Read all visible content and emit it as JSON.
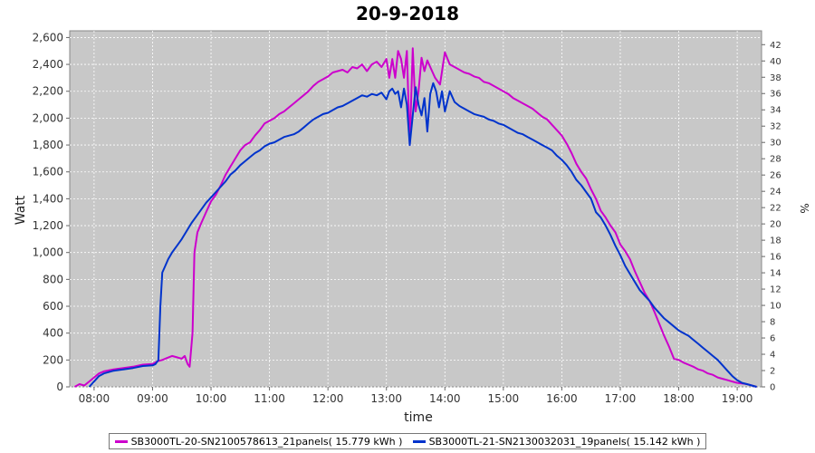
{
  "chart_data": {
    "type": "line",
    "title": "20-9-2018",
    "xlabel": "time",
    "ylabel": "Watt",
    "ylabel_right": "%",
    "xlim": [
      "07:35",
      "19:25"
    ],
    "ylim": [
      0,
      2650
    ],
    "ylim_right": [
      0,
      43.7
    ],
    "x_ticks": [
      "08:00",
      "09:00",
      "10:00",
      "11:00",
      "12:00",
      "13:00",
      "14:00",
      "15:00",
      "16:00",
      "17:00",
      "18:00",
      "19:00"
    ],
    "y_ticks": [
      "0",
      "200",
      "400",
      "600",
      "800",
      "1,000",
      "1,200",
      "1,400",
      "1,600",
      "1,800",
      "2,000",
      "2,200",
      "2,400",
      "2,600"
    ],
    "y_ticks_right": [
      "0",
      "2",
      "4",
      "6",
      "8",
      "10",
      "12",
      "14",
      "16",
      "18",
      "20",
      "22",
      "24",
      "26",
      "28",
      "30",
      "32",
      "34",
      "36",
      "38",
      "40",
      "42"
    ],
    "grid": true,
    "legend_position": "bottom",
    "series": [
      {
        "name": "SB3000TL-20-SN2100578613_21panels( 15.779 kWh )",
        "color": "#cc00cc",
        "points": [
          [
            "07:40",
            0
          ],
          [
            "07:45",
            20
          ],
          [
            "07:50",
            10
          ],
          [
            "07:55",
            40
          ],
          [
            "08:00",
            70
          ],
          [
            "08:05",
            100
          ],
          [
            "08:10",
            115
          ],
          [
            "08:20",
            130
          ],
          [
            "08:30",
            140
          ],
          [
            "08:40",
            150
          ],
          [
            "08:50",
            165
          ],
          [
            "09:00",
            170
          ],
          [
            "09:05",
            190
          ],
          [
            "09:10",
            200
          ],
          [
            "09:15",
            215
          ],
          [
            "09:20",
            230
          ],
          [
            "09:25",
            220
          ],
          [
            "09:30",
            210
          ],
          [
            "09:33",
            230
          ],
          [
            "09:36",
            170
          ],
          [
            "09:38",
            150
          ],
          [
            "09:41",
            400
          ],
          [
            "09:43",
            1000
          ],
          [
            "09:46",
            1150
          ],
          [
            "09:50",
            1220
          ],
          [
            "09:55",
            1300
          ],
          [
            "10:00",
            1380
          ],
          [
            "10:05",
            1430
          ],
          [
            "10:10",
            1500
          ],
          [
            "10:15",
            1580
          ],
          [
            "10:20",
            1640
          ],
          [
            "10:25",
            1700
          ],
          [
            "10:30",
            1760
          ],
          [
            "10:35",
            1800
          ],
          [
            "10:40",
            1820
          ],
          [
            "10:45",
            1870
          ],
          [
            "10:50",
            1910
          ],
          [
            "10:55",
            1960
          ],
          [
            "11:00",
            1980
          ],
          [
            "11:05",
            2000
          ],
          [
            "11:10",
            2030
          ],
          [
            "11:15",
            2050
          ],
          [
            "11:20",
            2080
          ],
          [
            "11:25",
            2110
          ],
          [
            "11:30",
            2140
          ],
          [
            "11:35",
            2170
          ],
          [
            "11:40",
            2200
          ],
          [
            "11:45",
            2240
          ],
          [
            "11:50",
            2270
          ],
          [
            "11:55",
            2290
          ],
          [
            "12:00",
            2310
          ],
          [
            "12:05",
            2340
          ],
          [
            "12:10",
            2350
          ],
          [
            "12:15",
            2360
          ],
          [
            "12:20",
            2340
          ],
          [
            "12:25",
            2380
          ],
          [
            "12:30",
            2370
          ],
          [
            "12:35",
            2400
          ],
          [
            "12:40",
            2350
          ],
          [
            "12:45",
            2400
          ],
          [
            "12:50",
            2420
          ],
          [
            "12:55",
            2380
          ],
          [
            "13:00",
            2440
          ],
          [
            "13:03",
            2300
          ],
          [
            "13:06",
            2440
          ],
          [
            "13:09",
            2300
          ],
          [
            "13:12",
            2500
          ],
          [
            "13:15",
            2440
          ],
          [
            "13:18",
            2300
          ],
          [
            "13:21",
            2500
          ],
          [
            "13:24",
            1800
          ],
          [
            "13:27",
            2520
          ],
          [
            "13:30",
            2050
          ],
          [
            "13:33",
            2200
          ],
          [
            "13:36",
            2450
          ],
          [
            "13:39",
            2350
          ],
          [
            "13:42",
            2430
          ],
          [
            "13:45",
            2380
          ],
          [
            "13:50",
            2300
          ],
          [
            "13:55",
            2250
          ],
          [
            "14:00",
            2490
          ],
          [
            "14:05",
            2400
          ],
          [
            "14:10",
            2380
          ],
          [
            "14:15",
            2360
          ],
          [
            "14:20",
            2340
          ],
          [
            "14:25",
            2330
          ],
          [
            "14:30",
            2310
          ],
          [
            "14:35",
            2300
          ],
          [
            "14:40",
            2270
          ],
          [
            "14:45",
            2260
          ],
          [
            "14:50",
            2240
          ],
          [
            "14:55",
            2220
          ],
          [
            "15:00",
            2200
          ],
          [
            "15:05",
            2180
          ],
          [
            "15:10",
            2150
          ],
          [
            "15:15",
            2130
          ],
          [
            "15:20",
            2110
          ],
          [
            "15:25",
            2090
          ],
          [
            "15:30",
            2070
          ],
          [
            "15:35",
            2040
          ],
          [
            "15:40",
            2010
          ],
          [
            "15:45",
            1990
          ],
          [
            "15:50",
            1950
          ],
          [
            "15:55",
            1910
          ],
          [
            "16:00",
            1870
          ],
          [
            "16:05",
            1810
          ],
          [
            "16:10",
            1740
          ],
          [
            "16:15",
            1660
          ],
          [
            "16:20",
            1600
          ],
          [
            "16:25",
            1550
          ],
          [
            "16:30",
            1470
          ],
          [
            "16:35",
            1400
          ],
          [
            "16:40",
            1310
          ],
          [
            "16:45",
            1260
          ],
          [
            "16:50",
            1200
          ],
          [
            "16:55",
            1150
          ],
          [
            "17:00",
            1060
          ],
          [
            "17:05",
            1010
          ],
          [
            "17:10",
            950
          ],
          [
            "17:15",
            860
          ],
          [
            "17:20",
            780
          ],
          [
            "17:25",
            700
          ],
          [
            "17:30",
            640
          ],
          [
            "17:35",
            560
          ],
          [
            "17:40",
            470
          ],
          [
            "17:45",
            380
          ],
          [
            "17:50",
            300
          ],
          [
            "17:55",
            210
          ],
          [
            "18:00",
            200
          ],
          [
            "18:05",
            180
          ],
          [
            "18:10",
            165
          ],
          [
            "18:15",
            150
          ],
          [
            "18:20",
            130
          ],
          [
            "18:25",
            120
          ],
          [
            "18:30",
            100
          ],
          [
            "18:35",
            90
          ],
          [
            "18:40",
            70
          ],
          [
            "18:45",
            60
          ],
          [
            "18:50",
            50
          ],
          [
            "18:55",
            40
          ],
          [
            "19:00",
            30
          ],
          [
            "19:05",
            25
          ],
          [
            "19:10",
            20
          ],
          [
            "19:15",
            10
          ],
          [
            "19:20",
            0
          ]
        ]
      },
      {
        "name": "SB3000TL-21-SN2130032031_19panels( 15.142 kWh )",
        "color": "#0033cc",
        "points": [
          [
            "07:55",
            0
          ],
          [
            "08:00",
            40
          ],
          [
            "08:05",
            80
          ],
          [
            "08:10",
            100
          ],
          [
            "08:15",
            110
          ],
          [
            "08:20",
            120
          ],
          [
            "08:30",
            130
          ],
          [
            "08:40",
            140
          ],
          [
            "08:50",
            155
          ],
          [
            "09:00",
            160
          ],
          [
            "09:03",
            170
          ],
          [
            "09:06",
            200
          ],
          [
            "09:08",
            600
          ],
          [
            "09:10",
            850
          ],
          [
            "09:13",
            900
          ],
          [
            "09:16",
            950
          ],
          [
            "09:20",
            1000
          ],
          [
            "09:25",
            1050
          ],
          [
            "09:30",
            1100
          ],
          [
            "09:35",
            1160
          ],
          [
            "09:40",
            1220
          ],
          [
            "09:45",
            1270
          ],
          [
            "09:50",
            1320
          ],
          [
            "09:55",
            1370
          ],
          [
            "10:00",
            1410
          ],
          [
            "10:05",
            1450
          ],
          [
            "10:10",
            1490
          ],
          [
            "10:15",
            1530
          ],
          [
            "10:20",
            1580
          ],
          [
            "10:25",
            1610
          ],
          [
            "10:30",
            1650
          ],
          [
            "10:35",
            1680
          ],
          [
            "10:40",
            1710
          ],
          [
            "10:45",
            1740
          ],
          [
            "10:50",
            1760
          ],
          [
            "10:55",
            1790
          ],
          [
            "11:00",
            1810
          ],
          [
            "11:05",
            1820
          ],
          [
            "11:10",
            1840
          ],
          [
            "11:15",
            1860
          ],
          [
            "11:20",
            1870
          ],
          [
            "11:25",
            1880
          ],
          [
            "11:30",
            1900
          ],
          [
            "11:35",
            1930
          ],
          [
            "11:40",
            1960
          ],
          [
            "11:45",
            1990
          ],
          [
            "11:50",
            2010
          ],
          [
            "11:55",
            2030
          ],
          [
            "12:00",
            2040
          ],
          [
            "12:05",
            2060
          ],
          [
            "12:10",
            2080
          ],
          [
            "12:15",
            2090
          ],
          [
            "12:20",
            2110
          ],
          [
            "12:25",
            2130
          ],
          [
            "12:30",
            2150
          ],
          [
            "12:35",
            2170
          ],
          [
            "12:40",
            2160
          ],
          [
            "12:45",
            2180
          ],
          [
            "12:50",
            2170
          ],
          [
            "12:55",
            2190
          ],
          [
            "13:00",
            2140
          ],
          [
            "13:03",
            2200
          ],
          [
            "13:06",
            2220
          ],
          [
            "13:09",
            2180
          ],
          [
            "13:12",
            2200
          ],
          [
            "13:15",
            2080
          ],
          [
            "13:18",
            2220
          ],
          [
            "13:21",
            2100
          ],
          [
            "13:24",
            1800
          ],
          [
            "13:27",
            2020
          ],
          [
            "13:30",
            2230
          ],
          [
            "13:33",
            2100
          ],
          [
            "13:36",
            2020
          ],
          [
            "13:39",
            2150
          ],
          [
            "13:42",
            1900
          ],
          [
            "13:45",
            2180
          ],
          [
            "13:48",
            2260
          ],
          [
            "13:51",
            2200
          ],
          [
            "13:54",
            2080
          ],
          [
            "13:57",
            2200
          ],
          [
            "14:00",
            2050
          ],
          [
            "14:05",
            2200
          ],
          [
            "14:10",
            2120
          ],
          [
            "14:15",
            2090
          ],
          [
            "14:20",
            2070
          ],
          [
            "14:25",
            2050
          ],
          [
            "14:30",
            2030
          ],
          [
            "14:35",
            2020
          ],
          [
            "14:40",
            2010
          ],
          [
            "14:45",
            1990
          ],
          [
            "14:50",
            1980
          ],
          [
            "14:55",
            1960
          ],
          [
            "15:00",
            1950
          ],
          [
            "15:05",
            1930
          ],
          [
            "15:10",
            1910
          ],
          [
            "15:15",
            1890
          ],
          [
            "15:20",
            1880
          ],
          [
            "15:25",
            1860
          ],
          [
            "15:30",
            1840
          ],
          [
            "15:35",
            1820
          ],
          [
            "15:40",
            1800
          ],
          [
            "15:45",
            1780
          ],
          [
            "15:50",
            1760
          ],
          [
            "15:55",
            1720
          ],
          [
            "16:00",
            1690
          ],
          [
            "16:05",
            1650
          ],
          [
            "16:10",
            1600
          ],
          [
            "16:15",
            1540
          ],
          [
            "16:20",
            1500
          ],
          [
            "16:25",
            1450
          ],
          [
            "16:30",
            1400
          ],
          [
            "16:35",
            1300
          ],
          [
            "16:40",
            1260
          ],
          [
            "16:45",
            1200
          ],
          [
            "16:50",
            1130
          ],
          [
            "16:55",
            1050
          ],
          [
            "17:00",
            980
          ],
          [
            "17:05",
            900
          ],
          [
            "17:10",
            840
          ],
          [
            "17:15",
            780
          ],
          [
            "17:20",
            720
          ],
          [
            "17:25",
            680
          ],
          [
            "17:30",
            640
          ],
          [
            "17:35",
            590
          ],
          [
            "17:40",
            550
          ],
          [
            "17:45",
            510
          ],
          [
            "17:50",
            480
          ],
          [
            "17:55",
            450
          ],
          [
            "18:00",
            420
          ],
          [
            "18:05",
            400
          ],
          [
            "18:10",
            380
          ],
          [
            "18:15",
            350
          ],
          [
            "18:20",
            320
          ],
          [
            "18:25",
            290
          ],
          [
            "18:30",
            260
          ],
          [
            "18:35",
            230
          ],
          [
            "18:40",
            200
          ],
          [
            "18:45",
            160
          ],
          [
            "18:50",
            120
          ],
          [
            "18:55",
            80
          ],
          [
            "19:00",
            50
          ],
          [
            "19:05",
            30
          ],
          [
            "19:10",
            20
          ],
          [
            "19:15",
            10
          ],
          [
            "19:20",
            0
          ]
        ]
      }
    ]
  }
}
